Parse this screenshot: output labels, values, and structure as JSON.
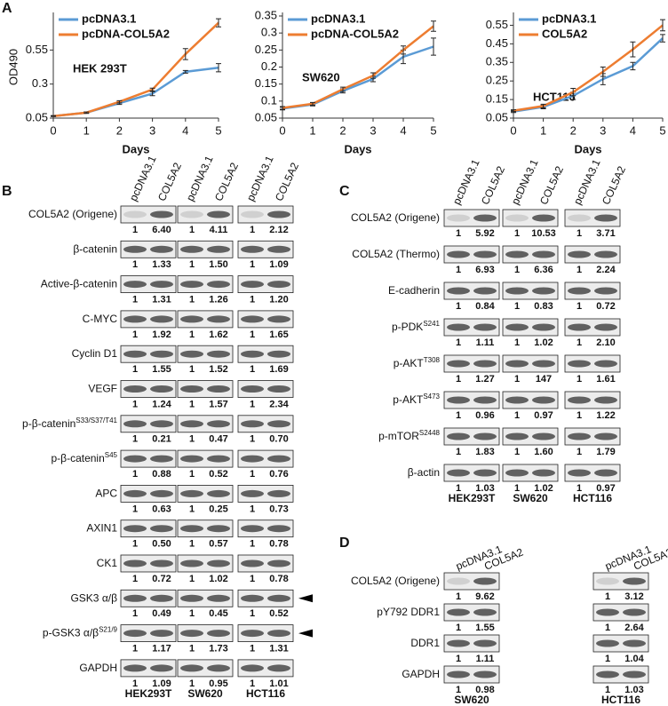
{
  "panel_labels": [
    "A",
    "B",
    "C",
    "D"
  ],
  "chart_data": [
    {
      "type": "line",
      "ylabel": "OD490",
      "xlabel": "Days",
      "annotation": "HEK 293T",
      "x": [
        0,
        1,
        2,
        3,
        4,
        5
      ],
      "xlim": [
        0,
        5
      ],
      "xticks": [
        0,
        1,
        2,
        3,
        4,
        5
      ],
      "ylim": [
        0.05,
        0.8
      ],
      "yticks": [
        0.05,
        0.3,
        0.55
      ],
      "series": [
        {
          "name": "pcDNA3.1",
          "color": "#5b9bd5",
          "values": [
            0.065,
            0.09,
            0.16,
            0.23,
            0.39,
            0.42
          ],
          "errors": [
            0.003,
            0.005,
            0.01,
            0.015,
            0.01,
            0.03
          ]
        },
        {
          "name": "pcDNA-COL5A2",
          "color": "#ed7d31",
          "values": [
            0.065,
            0.09,
            0.17,
            0.26,
            0.52,
            0.75
          ],
          "errors": [
            0.003,
            0.005,
            0.008,
            0.01,
            0.04,
            0.03
          ]
        }
      ]
    },
    {
      "type": "line",
      "xlabel": "Days",
      "annotation": "SW620",
      "x": [
        0,
        1,
        2,
        3,
        4,
        5
      ],
      "xlim": [
        0,
        5
      ],
      "xticks": [
        0,
        1,
        2,
        3,
        4,
        5
      ],
      "ylim": [
        0.05,
        0.35
      ],
      "yticks": [
        0.05,
        0.1,
        0.15,
        0.2,
        0.25,
        0.3,
        0.35
      ],
      "series": [
        {
          "name": "pcDNA3.1",
          "color": "#5b9bd5",
          "values": [
            0.078,
            0.09,
            0.13,
            0.165,
            0.23,
            0.26
          ],
          "errors": [
            0.004,
            0.004,
            0.006,
            0.008,
            0.02,
            0.025
          ]
        },
        {
          "name": "pcDNA-COL5A2",
          "color": "#ed7d31",
          "values": [
            0.08,
            0.092,
            0.135,
            0.175,
            0.25,
            0.32
          ],
          "errors": [
            0.004,
            0.004,
            0.006,
            0.008,
            0.012,
            0.015
          ]
        }
      ]
    },
    {
      "type": "line",
      "xlabel": "Days",
      "annotation": "HCT116",
      "x": [
        0,
        1,
        2,
        3,
        4,
        5
      ],
      "xlim": [
        0,
        5
      ],
      "xticks": [
        0,
        1,
        2,
        3,
        4,
        5
      ],
      "ylim": [
        0.05,
        0.6
      ],
      "yticks": [
        0.05,
        0.15,
        0.25,
        0.35,
        0.45,
        0.55
      ],
      "series": [
        {
          "name": "pcDNA3.1",
          "color": "#5b9bd5",
          "values": [
            0.085,
            0.11,
            0.17,
            0.26,
            0.33,
            0.48
          ],
          "errors": [
            0.005,
            0.01,
            0.02,
            0.03,
            0.02,
            0.02
          ]
        },
        {
          "name": "COL5A2",
          "color": "#ed7d31",
          "values": [
            0.09,
            0.115,
            0.19,
            0.3,
            0.42,
            0.55
          ],
          "errors": [
            0.005,
            0.01,
            0.02,
            0.025,
            0.04,
            0.03
          ]
        }
      ]
    }
  ],
  "blots": [
    {
      "groups": [
        "HEK293T",
        "SW620",
        "HCT116"
      ],
      "lanes": [
        "pcDNA3.1",
        "COL5A2"
      ],
      "rows": [
        {
          "label": "COL5A2 (Origene)",
          "values": [
            [
              "1",
              "6.40"
            ],
            [
              "1",
              "4.11"
            ],
            [
              "1",
              "2.12"
            ]
          ]
        },
        {
          "label": "β-catenin",
          "values": [
            [
              "1",
              "1.33"
            ],
            [
              "1",
              "1.50"
            ],
            [
              "1",
              "1.09"
            ]
          ]
        },
        {
          "label": "Active-β-catenin",
          "values": [
            [
              "1",
              "1.31"
            ],
            [
              "1",
              "1.26"
            ],
            [
              "1",
              "1.20"
            ]
          ]
        },
        {
          "label": "C-MYC",
          "values": [
            [
              "1",
              "1.92"
            ],
            [
              "1",
              "1.62"
            ],
            [
              "1",
              "1.65"
            ]
          ]
        },
        {
          "label": "Cyclin D1",
          "values": [
            [
              "1",
              "1.55"
            ],
            [
              "1",
              "1.52"
            ],
            [
              "1",
              "1.69"
            ]
          ]
        },
        {
          "label": "VEGF",
          "values": [
            [
              "1",
              "1.24"
            ],
            [
              "1",
              "1.57"
            ],
            [
              "1",
              "2.34"
            ]
          ]
        },
        {
          "label": "p-β-catenin",
          "sup": "S33/S37/T41",
          "values": [
            [
              "1",
              "0.21"
            ],
            [
              "1",
              "0.47"
            ],
            [
              "1",
              "0.70"
            ]
          ]
        },
        {
          "label": "p-β-catenin",
          "sup": "S45",
          "values": [
            [
              "1",
              "0.88"
            ],
            [
              "1",
              "0.52"
            ],
            [
              "1",
              "0.76"
            ]
          ]
        },
        {
          "label": "APC",
          "values": [
            [
              "1",
              "0.63"
            ],
            [
              "1",
              "0.25"
            ],
            [
              "1",
              "0.73"
            ]
          ]
        },
        {
          "label": "AXIN1",
          "values": [
            [
              "1",
              "0.50"
            ],
            [
              "1",
              "0.57"
            ],
            [
              "1",
              "0.78"
            ]
          ]
        },
        {
          "label": "CK1",
          "values": [
            [
              "1",
              "0.72"
            ],
            [
              "1",
              "1.02"
            ],
            [
              "1",
              "0.78"
            ]
          ]
        },
        {
          "label": "GSK3 α/β",
          "arrow": true,
          "values": [
            [
              "1",
              "0.49"
            ],
            [
              "1",
              "0.45"
            ],
            [
              "1",
              "0.52"
            ]
          ]
        },
        {
          "label": "p-GSK3 α/β",
          "sup": "S21/9",
          "arrow": true,
          "values": [
            [
              "1",
              "1.17"
            ],
            [
              "1",
              "1.73"
            ],
            [
              "1",
              "1.31"
            ]
          ]
        },
        {
          "label": "GAPDH",
          "values": [
            [
              "1",
              "1.09"
            ],
            [
              "1",
              "0.95"
            ],
            [
              "1",
              "1.01"
            ]
          ]
        }
      ]
    },
    {
      "groups": [
        "HEK293T",
        "SW620",
        "HCT116"
      ],
      "lanes": [
        "pcDNA3.1",
        "COL5A2"
      ],
      "rows": [
        {
          "label": "COL5A2 (Origene)",
          "values": [
            [
              "1",
              "5.92"
            ],
            [
              "1",
              "10.53"
            ],
            [
              "1",
              "3.71"
            ]
          ]
        },
        {
          "label": "COL5A2 (Thermo)",
          "values": [
            [
              "1",
              "6.93"
            ],
            [
              "1",
              "6.36"
            ],
            [
              "1",
              "2.24"
            ]
          ]
        },
        {
          "label": "E-cadherin",
          "values": [
            [
              "1",
              "0.84"
            ],
            [
              "1",
              "0.83"
            ],
            [
              "1",
              "0.72"
            ]
          ]
        },
        {
          "label": "p-PDK",
          "sup": "S241",
          "values": [
            [
              "1",
              "1.11"
            ],
            [
              "1",
              "1.02"
            ],
            [
              "1",
              "2.10"
            ]
          ]
        },
        {
          "label": "p-AKT",
          "sup": "T308",
          "values": [
            [
              "1",
              "1.27"
            ],
            [
              "1",
              "147"
            ],
            [
              "1",
              "1.61"
            ]
          ]
        },
        {
          "label": "p-AKT",
          "sup": "S473",
          "values": [
            [
              "1",
              "0.96"
            ],
            [
              "1",
              "0.97"
            ],
            [
              "1",
              "1.22"
            ]
          ]
        },
        {
          "label": "p-mTOR",
          "sup": "S2448",
          "values": [
            [
              "1",
              "1.83"
            ],
            [
              "1",
              "1.60"
            ],
            [
              "1",
              "1.79"
            ]
          ]
        },
        {
          "label": "β-actin",
          "values": [
            [
              "1",
              "1.03"
            ],
            [
              "1",
              "1.02"
            ],
            [
              "1",
              "0.97"
            ]
          ]
        }
      ]
    },
    {
      "groups": [
        "SW620",
        "HCT116"
      ],
      "lanes": [
        "pcDNA3.1",
        "COL5A2"
      ],
      "rows": [
        {
          "label": "COL5A2 (Origene)",
          "values": [
            [
              "1",
              "9.62"
            ],
            [
              "1",
              "3.12"
            ]
          ]
        },
        {
          "label": "pY792 DDR1",
          "values": [
            [
              "1",
              "1.55"
            ],
            [
              "1",
              "2.64"
            ]
          ]
        },
        {
          "label": "DDR1",
          "values": [
            [
              "1",
              "1.11"
            ],
            [
              "1",
              "1.04"
            ]
          ]
        },
        {
          "label": "GAPDH",
          "values": [
            [
              "1",
              "0.98"
            ],
            [
              "1",
              "1.03"
            ]
          ]
        }
      ]
    }
  ]
}
